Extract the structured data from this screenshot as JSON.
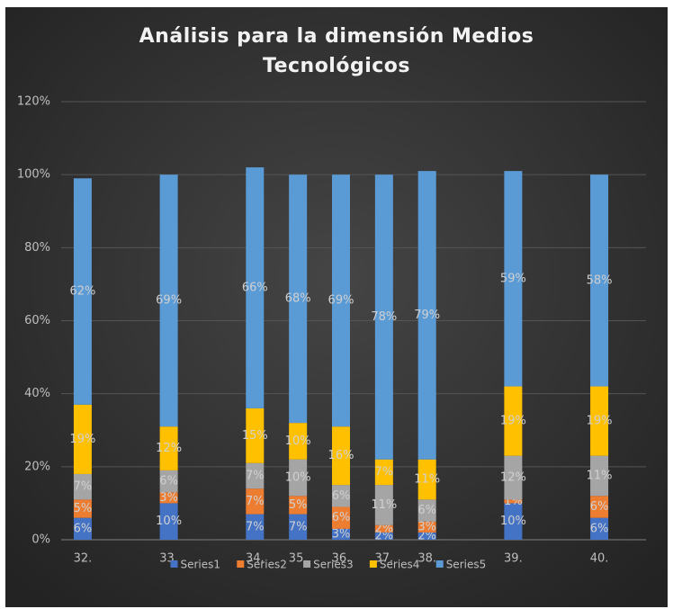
{
  "chart_data": {
    "type": "stacked_bar",
    "title": "Análisis para la dimensión Medios Tecnológicos",
    "categories": [
      "32.",
      null,
      "33.",
      null,
      "34.",
      "35.",
      "36.",
      "37.",
      "38.",
      null,
      "39.",
      null,
      "40."
    ],
    "series": [
      {
        "name": "Series1",
        "color": "#4472c4",
        "values": [
          6,
          null,
          10,
          null,
          7,
          7,
          3,
          2,
          2,
          null,
          10,
          null,
          6
        ],
        "value_labels": [
          "6%",
          null,
          "10%",
          null,
          "7%",
          "7%",
          "3%",
          "2%",
          "2%",
          null,
          "10%",
          null,
          "6%"
        ]
      },
      {
        "name": "Series2",
        "color": "#ed7d31",
        "values": [
          5,
          null,
          3,
          null,
          7,
          5,
          6,
          2,
          3,
          null,
          1,
          null,
          6
        ],
        "value_labels": [
          "5%",
          null,
          "3%",
          null,
          "7%",
          "5%",
          "6%",
          "2%",
          "3%",
          null,
          "1%",
          null,
          "6%"
        ]
      },
      {
        "name": "Series3",
        "color": "#a5a5a5",
        "values": [
          7,
          null,
          6,
          null,
          7,
          10,
          6,
          11,
          6,
          null,
          12,
          null,
          11
        ],
        "value_labels": [
          "7%",
          null,
          "6%",
          null,
          "7%",
          "10%",
          "6%",
          "11%",
          "6%",
          null,
          "12%",
          null,
          "11%"
        ]
      },
      {
        "name": "Series4",
        "color": "#ffc000",
        "values": [
          19,
          null,
          12,
          null,
          15,
          10,
          16,
          7,
          11,
          null,
          19,
          null,
          19
        ],
        "value_labels": [
          "19%",
          null,
          "12%",
          null,
          "15%",
          "10%",
          "16%",
          "7%",
          "11%",
          null,
          "19%",
          null,
          "19%"
        ]
      },
      {
        "name": "Series5",
        "color": "#5b9bd5",
        "values": [
          62,
          null,
          69,
          null,
          66,
          68,
          69,
          78,
          79,
          null,
          59,
          null,
          58
        ],
        "value_labels": [
          "62%",
          null,
          "69%",
          null,
          "66%",
          "68%",
          "69%",
          "78%",
          "79%",
          null,
          "59%",
          null,
          "58%"
        ]
      }
    ],
    "ylim": [
      0,
      120
    ],
    "yticks": [
      {
        "value": 0,
        "label": "0%"
      },
      {
        "value": 20,
        "label": "20%"
      },
      {
        "value": 40,
        "label": "40%"
      },
      {
        "value": 60,
        "label": "60%"
      },
      {
        "value": 80,
        "label": "80%"
      },
      {
        "value": 100,
        "label": "100%"
      },
      {
        "value": 120,
        "label": "120%"
      }
    ],
    "grid": true,
    "legend": "bottom"
  }
}
